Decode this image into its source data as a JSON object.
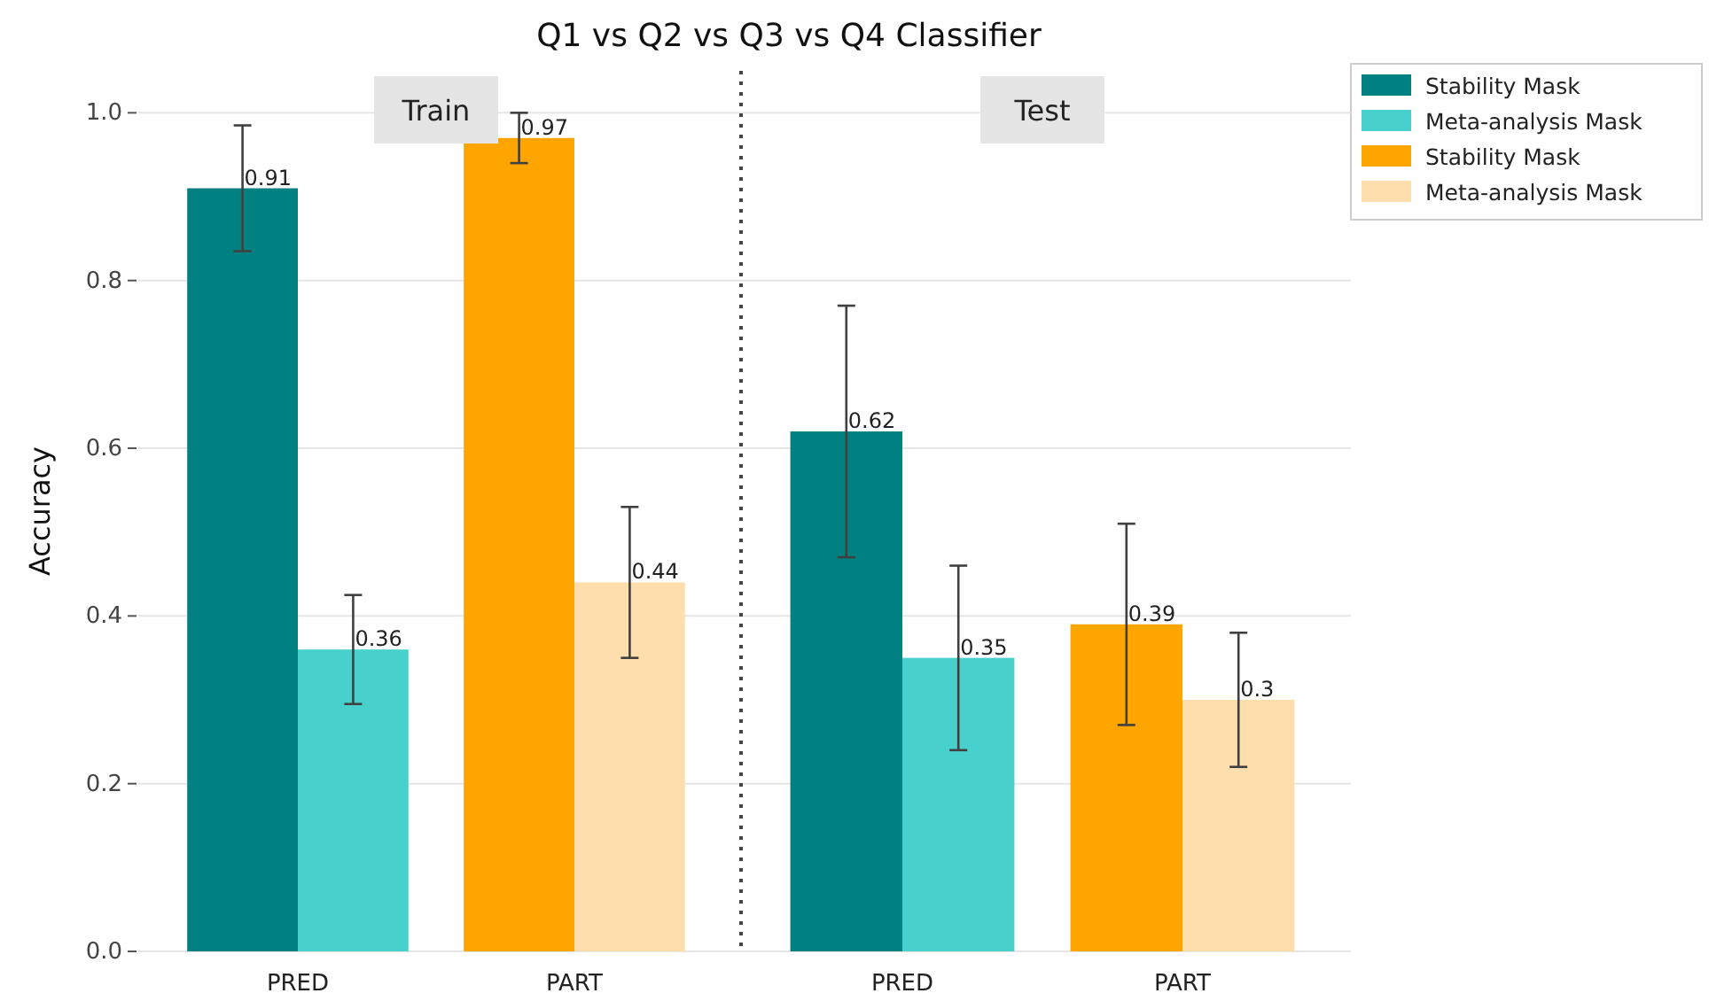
{
  "chart_data": [
    {
      "type": "bar",
      "title": "Q1 vs Q2 vs Q3 vs Q4 Classifier",
      "subtitle": "Train",
      "ylabel": "Accuracy",
      "categories": [
        "PRED",
        "PART"
      ],
      "series": [
        {
          "name": "Stability Mask",
          "color": "#008080",
          "values": [
            0.91,
            null
          ],
          "errors": [
            0.075,
            null
          ]
        },
        {
          "name": "Meta-analysis Mask",
          "color": "#48d1cc",
          "values": [
            0.36,
            null
          ],
          "errors": [
            0.065,
            null
          ]
        },
        {
          "name": "Stability Mask",
          "color": "#ffa500",
          "values": [
            null,
            0.97
          ],
          "errors": [
            null,
            0.03
          ]
        },
        {
          "name": "Meta-analysis Mask",
          "color": "#ffdead",
          "values": [
            null,
            0.44
          ],
          "errors": [
            null,
            0.09
          ]
        }
      ],
      "ylim": [
        0,
        1.05
      ],
      "yticks": [
        {
          "value": 0,
          "label": "0.0"
        },
        0.2,
        0.4,
        0.6,
        0.8,
        {
          "value": 1,
          "label": "1.0"
        }
      ],
      "grid": "y",
      "data_labels": true,
      "legend": "top right"
    },
    {
      "type": "bar",
      "subtitle": "Test",
      "categories": [
        "PRED",
        "PART"
      ],
      "series": [
        {
          "color": "#008080",
          "values": [
            0.62,
            null
          ],
          "errors": [
            0.15,
            null
          ]
        },
        {
          "color": "#48d1cc",
          "values": [
            0.35,
            null
          ],
          "errors": [
            0.11,
            null
          ]
        },
        {
          "color": "#ffa500",
          "values": [
            null,
            0.39
          ],
          "errors": [
            null,
            0.12
          ]
        },
        {
          "color": "#ffdead",
          "values": [
            null,
            0.3
          ],
          "errors": [
            null,
            0.08
          ]
        }
      ],
      "ylim": [
        0,
        1.05
      ],
      "yticks": [
        0,
        0.2,
        0.4,
        0.6,
        0.8,
        1
      ],
      "grid": "y",
      "data_labels": true,
      "tick_labels": "x"
    }
  ]
}
